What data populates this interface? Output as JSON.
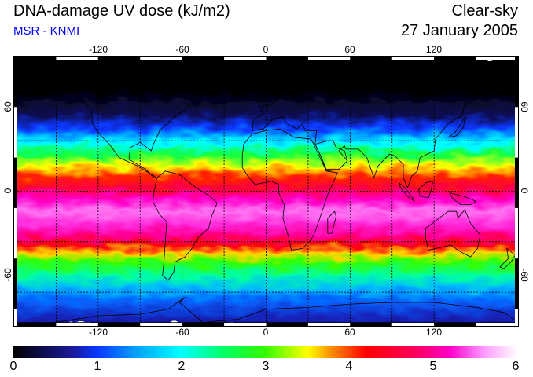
{
  "header": {
    "title": "DNA-damage UV dose (kJ/m2)",
    "subtitle": "MSR - KNMI",
    "sky_condition": "Clear-sky",
    "date": "27 January 2005"
  },
  "colors": {
    "subtitle": "#0000ff",
    "grid": "#000000",
    "coastline": "#000000"
  },
  "map": {
    "projection": "equirectangular",
    "lon_range": [
      -180,
      180
    ],
    "lat_range": [
      -80,
      80
    ],
    "lon_ticks": [
      "-120",
      "-60",
      "0",
      "60",
      "120"
    ],
    "lat_ticks_left": [
      "60",
      "0",
      "-60"
    ],
    "lat_ticks_right": [
      "60",
      "0",
      "-60"
    ],
    "grid_lon": [
      -150,
      -120,
      -90,
      -60,
      -30,
      0,
      30,
      60,
      90,
      120,
      150
    ],
    "grid_lat": [
      -60,
      -30,
      0,
      30,
      60
    ]
  },
  "colorbar": {
    "min": 0,
    "max": 6,
    "labels": [
      "0",
      "1",
      "2",
      "3",
      "4",
      "5",
      "6"
    ],
    "stops": [
      {
        "value": 0.0,
        "color": "#000000"
      },
      {
        "value": 0.7,
        "color": "#1a1a9a"
      },
      {
        "value": 1.0,
        "color": "#0a38ff"
      },
      {
        "value": 1.5,
        "color": "#00a8ff"
      },
      {
        "value": 2.0,
        "color": "#00ffff"
      },
      {
        "value": 2.5,
        "color": "#00ff66"
      },
      {
        "value": 3.0,
        "color": "#33ff00"
      },
      {
        "value": 3.5,
        "color": "#ffff00"
      },
      {
        "value": 3.8,
        "color": "#ff8800"
      },
      {
        "value": 4.2,
        "color": "#ff0000"
      },
      {
        "value": 4.8,
        "color": "#ff0060"
      },
      {
        "value": 5.2,
        "color": "#ff00cc"
      },
      {
        "value": 5.6,
        "color": "#ff99ff"
      },
      {
        "value": 6.0,
        "color": "#ffffff"
      }
    ]
  },
  "dose_profile": [
    {
      "lat": 80,
      "dose": 0.0
    },
    {
      "lat": 60,
      "dose": 0.0
    },
    {
      "lat": 45,
      "dose": 0.4
    },
    {
      "lat": 38,
      "dose": 1.0
    },
    {
      "lat": 33,
      "dose": 1.5
    },
    {
      "lat": 28,
      "dose": 2.0
    },
    {
      "lat": 22,
      "dose": 2.7
    },
    {
      "lat": 15,
      "dose": 3.5
    },
    {
      "lat": 8,
      "dose": 4.1
    },
    {
      "lat": 2,
      "dose": 4.6
    },
    {
      "lat": -5,
      "dose": 5.2
    },
    {
      "lat": -12,
      "dose": 5.5
    },
    {
      "lat": -20,
      "dose": 5.3
    },
    {
      "lat": -26,
      "dose": 5.0
    },
    {
      "lat": -32,
      "dose": 4.3
    },
    {
      "lat": -37,
      "dose": 3.6
    },
    {
      "lat": -42,
      "dose": 3.0
    },
    {
      "lat": -50,
      "dose": 2.3
    },
    {
      "lat": -58,
      "dose": 1.6
    },
    {
      "lat": -65,
      "dose": 1.2
    },
    {
      "lat": -75,
      "dose": 0.8
    },
    {
      "lat": -80,
      "dose": 0.7
    }
  ],
  "continents": [
    {
      "name": "north-america",
      "points": [
        [
          -168,
          65
        ],
        [
          -155,
          71
        ],
        [
          -125,
          70
        ],
        [
          -95,
          72
        ],
        [
          -82,
          68
        ],
        [
          -62,
          60
        ],
        [
          -55,
          50
        ],
        [
          -66,
          44
        ],
        [
          -76,
          36
        ],
        [
          -81,
          27
        ],
        [
          -82,
          24
        ],
        [
          -90,
          29
        ],
        [
          -97,
          26
        ],
        [
          -98,
          19
        ],
        [
          -92,
          16
        ],
        [
          -86,
          13
        ],
        [
          -80,
          8
        ],
        [
          -78,
          8
        ],
        [
          -84,
          11
        ],
        [
          -92,
          15
        ],
        [
          -105,
          20
        ],
        [
          -112,
          28
        ],
        [
          -118,
          33
        ],
        [
          -124,
          40
        ],
        [
          -125,
          48
        ],
        [
          -135,
          58
        ],
        [
          -150,
          60
        ],
        [
          -165,
          60
        ]
      ]
    },
    {
      "name": "south-america",
      "points": [
        [
          -78,
          8
        ],
        [
          -72,
          12
        ],
        [
          -62,
          10
        ],
        [
          -50,
          2
        ],
        [
          -40,
          -3
        ],
        [
          -35,
          -7
        ],
        [
          -39,
          -15
        ],
        [
          -41,
          -22
        ],
        [
          -48,
          -27
        ],
        [
          -53,
          -34
        ],
        [
          -58,
          -39
        ],
        [
          -65,
          -42
        ],
        [
          -66,
          -48
        ],
        [
          -70,
          -53
        ],
        [
          -74,
          -50
        ],
        [
          -73,
          -42
        ],
        [
          -72,
          -30
        ],
        [
          -71,
          -18
        ],
        [
          -76,
          -14
        ],
        [
          -81,
          -6
        ],
        [
          -80,
          0
        ]
      ]
    },
    {
      "name": "greenland",
      "points": [
        [
          -55,
          80
        ],
        [
          -20,
          80
        ],
        [
          -18,
          72
        ],
        [
          -30,
          68
        ],
        [
          -42,
          60
        ],
        [
          -50,
          65
        ],
        [
          -58,
          75
        ]
      ]
    },
    {
      "name": "africa",
      "points": [
        [
          -17,
          21
        ],
        [
          -16,
          28
        ],
        [
          -10,
          34
        ],
        [
          0,
          36
        ],
        [
          10,
          37
        ],
        [
          20,
          32
        ],
        [
          32,
          31
        ],
        [
          34,
          28
        ],
        [
          43,
          12
        ],
        [
          51,
          11
        ],
        [
          44,
          -2
        ],
        [
          40,
          -12
        ],
        [
          35,
          -24
        ],
        [
          32,
          -29
        ],
        [
          26,
          -34
        ],
        [
          18,
          -35
        ],
        [
          16,
          -27
        ],
        [
          12,
          -16
        ],
        [
          13,
          -8
        ],
        [
          9,
          -1
        ],
        [
          9,
          4
        ],
        [
          4,
          6
        ],
        [
          -8,
          4
        ],
        [
          -13,
          9
        ],
        [
          -17,
          14
        ]
      ]
    },
    {
      "name": "eurasia",
      "points": [
        [
          -10,
          36
        ],
        [
          -9,
          43
        ],
        [
          -1,
          46
        ],
        [
          -4,
          48
        ],
        [
          2,
          51
        ],
        [
          8,
          54
        ],
        [
          5,
          58
        ],
        [
          10,
          63
        ],
        [
          20,
          70
        ],
        [
          40,
          68
        ],
        [
          60,
          70
        ],
        [
          80,
          73
        ],
        [
          110,
          77
        ],
        [
          140,
          72
        ],
        [
          165,
          69
        ],
        [
          180,
          67
        ],
        [
          180,
          62
        ],
        [
          160,
          60
        ],
        [
          142,
          52
        ],
        [
          140,
          45
        ],
        [
          130,
          40
        ],
        [
          121,
          31
        ],
        [
          120,
          24
        ],
        [
          110,
          20
        ],
        [
          108,
          12
        ],
        [
          104,
          9
        ],
        [
          101,
          2
        ],
        [
          98,
          8
        ],
        [
          98,
          16
        ],
        [
          92,
          21
        ],
        [
          88,
          22
        ],
        [
          80,
          15
        ],
        [
          77,
          8
        ],
        [
          72,
          20
        ],
        [
          66,
          25
        ],
        [
          57,
          25
        ],
        [
          56,
          27
        ],
        [
          52,
          24
        ],
        [
          58,
          18
        ],
        [
          52,
          13
        ],
        [
          43,
          12
        ],
        [
          39,
          21
        ],
        [
          35,
          28
        ],
        [
          36,
          36
        ],
        [
          28,
          36
        ],
        [
          26,
          40
        ],
        [
          22,
          37
        ],
        [
          15,
          40
        ],
        [
          12,
          44
        ],
        [
          5,
          43
        ],
        [
          -2,
          37
        ]
      ]
    },
    {
      "name": "arabia",
      "points": [
        [
          35,
          28
        ],
        [
          39,
          21
        ],
        [
          43,
          13
        ],
        [
          52,
          13
        ],
        [
          58,
          18
        ],
        [
          56,
          24
        ],
        [
          50,
          26
        ],
        [
          48,
          30
        ],
        [
          44,
          30
        ]
      ]
    },
    {
      "name": "madagascar",
      "points": [
        [
          44,
          -25
        ],
        [
          47,
          -25
        ],
        [
          50,
          -15
        ],
        [
          49,
          -12
        ],
        [
          44,
          -16
        ]
      ]
    },
    {
      "name": "australia",
      "points": [
        [
          114,
          -22
        ],
        [
          122,
          -17
        ],
        [
          130,
          -12
        ],
        [
          136,
          -12
        ],
        [
          137,
          -16
        ],
        [
          142,
          -11
        ],
        [
          146,
          -19
        ],
        [
          153,
          -26
        ],
        [
          151,
          -34
        ],
        [
          146,
          -39
        ],
        [
          139,
          -36
        ],
        [
          132,
          -32
        ],
        [
          116,
          -35
        ],
        [
          114,
          -28
        ]
      ]
    },
    {
      "name": "new-guinea",
      "points": [
        [
          131,
          -1
        ],
        [
          141,
          -3
        ],
        [
          150,
          -6
        ],
        [
          146,
          -8
        ],
        [
          139,
          -8
        ],
        [
          133,
          -4
        ]
      ]
    },
    {
      "name": "borneo",
      "points": [
        [
          109,
          1
        ],
        [
          114,
          5
        ],
        [
          119,
          6
        ],
        [
          118,
          1
        ],
        [
          116,
          -4
        ],
        [
          110,
          -3
        ]
      ]
    },
    {
      "name": "sumatra",
      "points": [
        [
          95,
          5
        ],
        [
          98,
          3
        ],
        [
          104,
          -3
        ],
        [
          106,
          -6
        ],
        [
          101,
          -3
        ],
        [
          96,
          2
        ]
      ]
    },
    {
      "name": "japan",
      "points": [
        [
          130,
          32
        ],
        [
          135,
          35
        ],
        [
          140,
          41
        ],
        [
          142,
          44
        ],
        [
          141,
          38
        ],
        [
          136,
          33
        ]
      ]
    },
    {
      "name": "new-zealand",
      "points": [
        [
          172,
          -34
        ],
        [
          178,
          -38
        ],
        [
          175,
          -42
        ],
        [
          170,
          -46
        ],
        [
          167,
          -45
        ],
        [
          173,
          -40
        ]
      ]
    },
    {
      "name": "antarctica",
      "points": [
        [
          -180,
          -78
        ],
        [
          -160,
          -79
        ],
        [
          -120,
          -74
        ],
        [
          -90,
          -73
        ],
        [
          -70,
          -70
        ],
        [
          -58,
          -63
        ],
        [
          -62,
          -66
        ],
        [
          -45,
          -78
        ],
        [
          -20,
          -76
        ],
        [
          0,
          -70
        ],
        [
          30,
          -69
        ],
        [
          60,
          -67
        ],
        [
          90,
          -66
        ],
        [
          120,
          -66
        ],
        [
          150,
          -69
        ],
        [
          170,
          -72
        ],
        [
          180,
          -78
        ]
      ]
    },
    {
      "name": "uk",
      "points": [
        [
          -5,
          50
        ],
        [
          1,
          51
        ],
        [
          0,
          54
        ],
        [
          -3,
          58
        ],
        [
          -6,
          56
        ]
      ]
    },
    {
      "name": "iceland",
      "points": [
        [
          -24,
          64
        ],
        [
          -14,
          64
        ],
        [
          -14,
          66
        ],
        [
          -22,
          66
        ]
      ]
    }
  ]
}
